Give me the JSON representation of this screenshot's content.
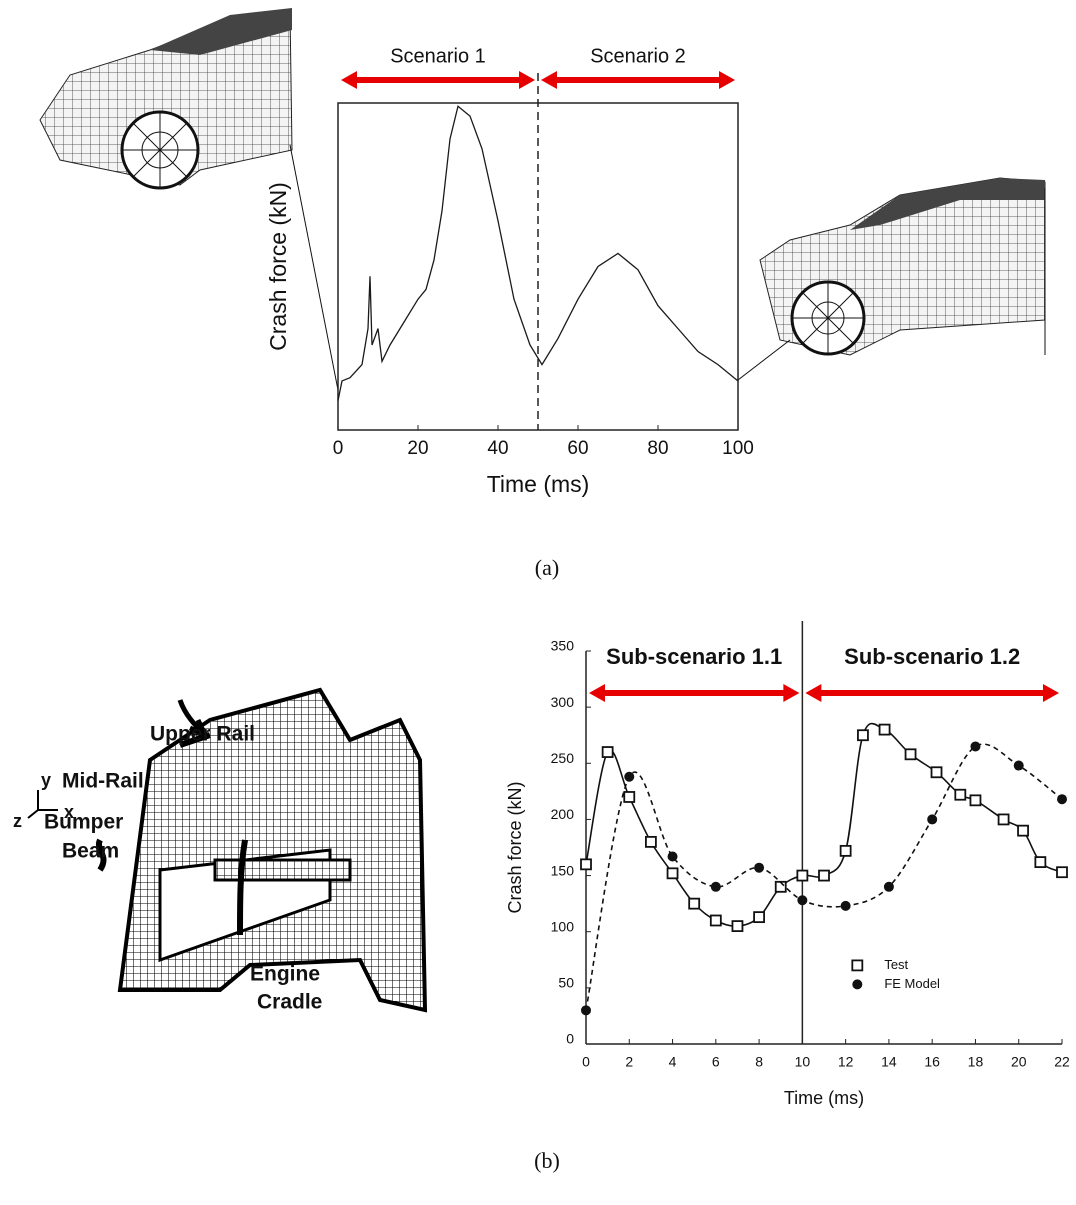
{
  "chart_data": [
    {
      "type": "line",
      "xlabel": "Time (ms)",
      "ylabel": "Crash force (kN)",
      "x": [
        0,
        1,
        3,
        6,
        7.5,
        8,
        8.5,
        10,
        11,
        13,
        16,
        20,
        22,
        24,
        26,
        28,
        30,
        33,
        36,
        40,
        44,
        48,
        51,
        55,
        60,
        65,
        70,
        75,
        80,
        85,
        90,
        95,
        100
      ],
      "values": [
        9,
        15,
        16,
        20,
        31,
        47,
        26,
        31,
        21,
        26,
        32,
        40,
        43,
        52,
        67,
        89,
        99,
        96,
        86,
        64,
        40,
        26,
        20,
        28,
        40,
        50,
        54,
        49,
        38,
        31,
        24,
        20,
        15
      ],
      "color": "#1a1a1a",
      "xlim": [
        0,
        100
      ],
      "xticks": [
        0,
        20,
        40,
        60,
        80,
        100
      ],
      "ylim": [
        0,
        100
      ],
      "frame": true,
      "smooth": false,
      "divider": {
        "value": 50,
        "style": "dashed"
      },
      "regions": [
        {
          "label": "Scenario 1",
          "from": 0,
          "to": 50
        },
        {
          "label": "Scenario 2",
          "from": 50,
          "to": 100
        }
      ],
      "region_color": "#e60000"
    },
    {
      "type": "line",
      "xlabel": "Time (ms)",
      "ylabel": "Crash force (kN)",
      "series": [
        {
          "name": "Test",
          "color": "#111111",
          "marker": "square",
          "dash": false,
          "x": [
            0,
            1,
            2,
            3,
            4,
            5,
            6,
            7,
            8,
            9,
            10,
            11,
            12,
            12.8,
            13.8,
            15,
            16.2,
            17.3,
            18,
            19.3,
            20.2,
            21,
            22
          ],
          "values": [
            160,
            260,
            220,
            180,
            152,
            125,
            110,
            105,
            113,
            140,
            150,
            150,
            172,
            275,
            280,
            258,
            242,
            222,
            217,
            200,
            190,
            162,
            153
          ]
        },
        {
          "name": "FE Model",
          "color": "#111111",
          "marker": "dot",
          "dash": true,
          "x": [
            0,
            2,
            4,
            6,
            8,
            10,
            12,
            14,
            16,
            18,
            20,
            22
          ],
          "values": [
            30,
            238,
            167,
            140,
            157,
            128,
            123,
            140,
            200,
            265,
            248,
            218
          ]
        }
      ],
      "xlim": [
        0,
        22
      ],
      "xticks": [
        0,
        2,
        4,
        6,
        8,
        10,
        12,
        14,
        16,
        18,
        20,
        22
      ],
      "ylim": [
        0,
        350
      ],
      "yticks": [
        0,
        50,
        100,
        150,
        200,
        250,
        300,
        350
      ],
      "frame": false,
      "smooth": true,
      "legend": "lower right",
      "divider": {
        "value": 10,
        "style": "solid"
      },
      "regions": [
        {
          "label": "Sub-scenario 1.1",
          "from": 0,
          "to": 10
        },
        {
          "label": "Sub-scenario 1.2",
          "from": 10,
          "to": 22
        }
      ],
      "region_color": "#e60000"
    }
  ],
  "captions": [
    "(a)",
    "(b)"
  ],
  "diagram": {
    "labels": [
      [
        "Upper Rail"
      ],
      [
        "Mid-Rail"
      ],
      [
        "Bumper",
        "Beam"
      ],
      [
        "Engine",
        "Cradle"
      ]
    ],
    "axes": [
      "z",
      "y",
      "x"
    ]
  }
}
